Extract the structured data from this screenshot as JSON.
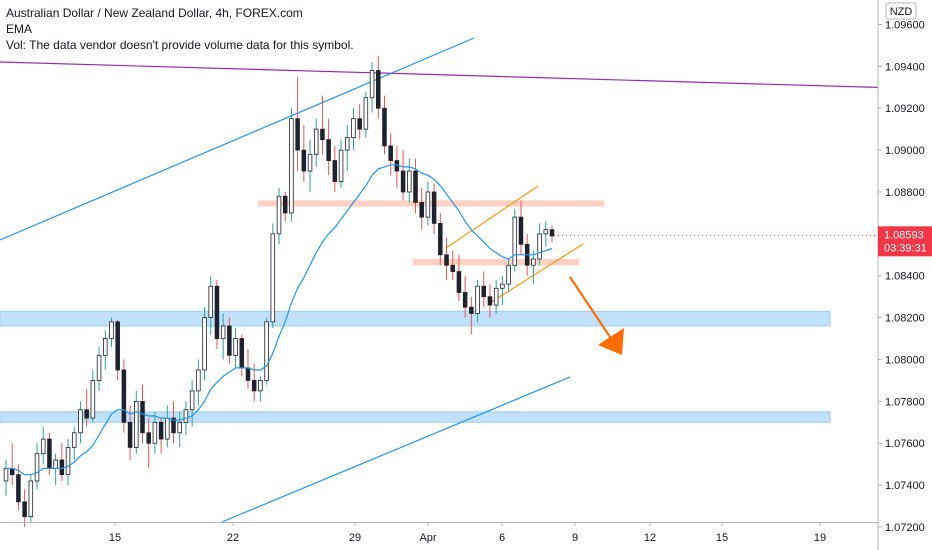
{
  "legend": {
    "title": "Australian Dollar / New Zealand Dollar, 4h, FOREX.com",
    "ema_label": "EMA",
    "vol_label": "Vol: The data vendor doesn't provide volume data for this symbol."
  },
  "price_axis": {
    "currency": "NZD",
    "last_price": "1.08593",
    "countdown": "03:39:31"
  },
  "colors": {
    "up": "#26a69a",
    "down": "#ef5350",
    "candle_body": "#1e222d",
    "candle_up_fill": "#ffffff",
    "ema": "#2196f3",
    "trend_blue": "#2196f3",
    "resistance_purple": "#9c27b0",
    "support_zone": "#bbdefb",
    "resistance_zone": "#ffccbc",
    "channel": "#ff9800",
    "arrow": "#ff6d00",
    "price_tag": "#f23645"
  },
  "chart_data": {
    "type": "candlestick",
    "symbol": "AUDNZD",
    "timeframe": "4h",
    "x_ticks": [
      "15",
      "22",
      "29",
      "Apr",
      "6",
      "9",
      "12",
      "15",
      "19"
    ],
    "y_ticks": [
      "1.09600",
      "1.09400",
      "1.09200",
      "1.09000",
      "1.08800",
      "1.08600",
      "1.08400",
      "1.08200",
      "1.08000",
      "1.07800",
      "1.07600",
      "1.07400",
      "1.07200"
    ],
    "ylim": [
      1.072,
      1.0965
    ],
    "last_price": 1.08593,
    "zones": [
      {
        "name": "support",
        "y_from": 1.0816,
        "y_to": 1.0823
      },
      {
        "name": "support",
        "y_from": 1.077,
        "y_to": 1.0775
      },
      {
        "name": "resistance",
        "y_from": 1.0873,
        "y_to": 1.0876
      },
      {
        "name": "resistance",
        "y_from": 1.0845,
        "y_to": 1.0848
      }
    ],
    "candles": [
      [
        1.0742,
        1.0752,
        1.0735,
        1.0748
      ],
      [
        1.0748,
        1.076,
        1.074,
        1.0745
      ],
      [
        1.0745,
        1.075,
        1.0728,
        1.0732
      ],
      [
        1.0732,
        1.0738,
        1.072,
        1.0725
      ],
      [
        1.0725,
        1.0745,
        1.0722,
        1.0742
      ],
      [
        1.0742,
        1.076,
        1.0738,
        1.0755
      ],
      [
        1.0755,
        1.0768,
        1.075,
        1.0762
      ],
      [
        1.0762,
        1.0765,
        1.0745,
        1.0748
      ],
      [
        1.0748,
        1.0755,
        1.074,
        1.0752
      ],
      [
        1.0752,
        1.076,
        1.0742,
        1.0745
      ],
      [
        1.0745,
        1.0762,
        1.074,
        1.0758
      ],
      [
        1.0758,
        1.0768,
        1.0752,
        1.0765
      ],
      [
        1.0765,
        1.078,
        1.076,
        1.0776
      ],
      [
        1.0776,
        1.0786,
        1.0768,
        1.0772
      ],
      [
        1.0772,
        1.0795,
        1.077,
        1.079
      ],
      [
        1.079,
        1.0806,
        1.0785,
        1.0802
      ],
      [
        1.0802,
        1.0814,
        1.0795,
        1.081
      ],
      [
        1.081,
        1.082,
        1.0806,
        1.0818
      ],
      [
        1.0818,
        1.0819,
        1.079,
        1.0795
      ],
      [
        1.0795,
        1.08,
        1.0765,
        1.077
      ],
      [
        1.077,
        1.0778,
        1.0752,
        1.0758
      ],
      [
        1.0758,
        1.0785,
        1.0755,
        1.078
      ],
      [
        1.078,
        1.0788,
        1.076,
        1.0765
      ],
      [
        1.0765,
        1.0772,
        1.0748,
        1.076
      ],
      [
        1.076,
        1.0775,
        1.0755,
        1.077
      ],
      [
        1.077,
        1.0772,
        1.0755,
        1.0762
      ],
      [
        1.0762,
        1.0778,
        1.0758,
        1.0772
      ],
      [
        1.0772,
        1.078,
        1.076,
        1.0765
      ],
      [
        1.0765,
        1.0775,
        1.0758,
        1.077
      ],
      [
        1.077,
        1.078,
        1.0764,
        1.0776
      ],
      [
        1.0776,
        1.079,
        1.0768,
        1.0785
      ],
      [
        1.0785,
        1.08,
        1.0778,
        1.0795
      ],
      [
        1.0795,
        1.0825,
        1.079,
        1.082
      ],
      [
        1.082,
        1.084,
        1.0812,
        1.0835
      ],
      [
        1.0835,
        1.0838,
        1.0805,
        1.081
      ],
      [
        1.081,
        1.0822,
        1.08,
        1.0816
      ],
      [
        1.0816,
        1.082,
        1.0798,
        1.0802
      ],
      [
        1.0802,
        1.0815,
        1.0796,
        1.081
      ],
      [
        1.081,
        1.0812,
        1.0792,
        1.0796
      ],
      [
        1.0796,
        1.0805,
        1.0786,
        1.079
      ],
      [
        1.079,
        1.0798,
        1.078,
        1.0785
      ],
      [
        1.0785,
        1.0792,
        1.078,
        1.079
      ],
      [
        1.079,
        1.082,
        1.0788,
        1.0818
      ],
      [
        1.0818,
        1.0865,
        1.0815,
        1.086
      ],
      [
        1.086,
        1.0882,
        1.0855,
        1.0878
      ],
      [
        1.0878,
        1.088,
        1.0866,
        1.087
      ],
      [
        1.087,
        1.092,
        1.0866,
        1.0915
      ],
      [
        1.0915,
        1.0935,
        1.089,
        1.09
      ],
      [
        1.09,
        1.0912,
        1.0885,
        1.089
      ],
      [
        1.089,
        1.0905,
        1.088,
        1.0898
      ],
      [
        1.0898,
        1.0915,
        1.0892,
        1.091
      ],
      [
        1.091,
        1.0926,
        1.0898,
        1.0905
      ],
      [
        1.0905,
        1.0915,
        1.0888,
        1.0895
      ],
      [
        1.0895,
        1.0902,
        1.088,
        1.0885
      ],
      [
        1.0885,
        1.0905,
        1.0882,
        1.09
      ],
      [
        1.09,
        1.0912,
        1.089,
        1.0906
      ],
      [
        1.0906,
        1.092,
        1.09,
        1.0915
      ],
      [
        1.0915,
        1.0922,
        1.0905,
        1.091
      ],
      [
        1.091,
        1.0928,
        1.0906,
        1.0925
      ],
      [
        1.0925,
        1.0942,
        1.0918,
        1.0938
      ],
      [
        1.0938,
        1.0945,
        1.0915,
        1.092
      ],
      [
        1.092,
        1.0926,
        1.0898,
        1.0902
      ],
      [
        1.0902,
        1.0908,
        1.0888,
        1.0895
      ],
      [
        1.0895,
        1.0902,
        1.0882,
        1.089
      ],
      [
        1.089,
        1.09,
        1.0876,
        1.088
      ],
      [
        1.088,
        1.0896,
        1.0875,
        1.089
      ],
      [
        1.089,
        1.0896,
        1.087,
        1.0875
      ],
      [
        1.0875,
        1.0882,
        1.0862,
        1.0868
      ],
      [
        1.0868,
        1.0885,
        1.0864,
        1.088
      ],
      [
        1.088,
        1.0884,
        1.086,
        1.0865
      ],
      [
        1.0865,
        1.087,
        1.0845,
        1.085
      ],
      [
        1.085,
        1.0858,
        1.0838,
        1.0845
      ],
      [
        1.0845,
        1.0852,
        1.0838,
        1.0842
      ],
      [
        1.0842,
        1.085,
        1.0828,
        1.0832
      ],
      [
        1.0832,
        1.084,
        1.082,
        1.0825
      ],
      [
        1.0825,
        1.083,
        1.0812,
        1.0822
      ],
      [
        1.0822,
        1.0838,
        1.0818,
        1.0835
      ],
      [
        1.0835,
        1.0842,
        1.0825,
        1.083
      ],
      [
        1.083,
        1.0836,
        1.082,
        1.0826
      ],
      [
        1.0826,
        1.0838,
        1.0822,
        1.0834
      ],
      [
        1.0834,
        1.084,
        1.0826,
        1.0836
      ],
      [
        1.0836,
        1.0848,
        1.0832,
        1.0845
      ],
      [
        1.0845,
        1.0872,
        1.0842,
        1.0868
      ],
      [
        1.0868,
        1.0876,
        1.085,
        1.0855
      ],
      [
        1.0855,
        1.086,
        1.084,
        1.0845
      ],
      [
        1.0845,
        1.0852,
        1.0836,
        1.0848
      ],
      [
        1.0848,
        1.0865,
        1.0845,
        1.086
      ],
      [
        1.086,
        1.0866,
        1.0854,
        1.0862
      ],
      [
        1.0862,
        1.0864,
        1.0856,
        1.0859
      ]
    ],
    "ema": [
      1.0748,
      1.0748,
      1.0747,
      1.0745,
      1.0745,
      1.0746,
      1.0748,
      1.0748,
      1.0748,
      1.0748,
      1.0749,
      1.0751,
      1.0754,
      1.0756,
      1.0759,
      1.0764,
      1.0769,
      1.0774,
      1.0776,
      1.0776,
      1.0774,
      1.0775,
      1.0774,
      1.0773,
      1.0773,
      1.0772,
      1.0772,
      1.0771,
      1.0771,
      1.0772,
      1.0773,
      1.0776,
      1.078,
      1.0786,
      1.0789,
      1.0792,
      1.0794,
      1.0796,
      1.0796,
      1.0796,
      1.0795,
      1.0795,
      1.0797,
      1.0803,
      1.0811,
      1.0818,
      1.0827,
      1.0834,
      1.0839,
      1.0845,
      1.0851,
      1.0856,
      1.086,
      1.0863,
      1.0867,
      1.0871,
      1.0875,
      1.0879,
      1.0883,
      1.0888,
      1.0891,
      1.0892,
      1.0893,
      1.0893,
      1.0892,
      1.0892,
      1.0891,
      1.0889,
      1.0888,
      1.0886,
      1.0883,
      1.0879,
      1.0875,
      1.0871,
      1.0866,
      1.0862,
      1.0859,
      1.0856,
      1.0853,
      1.0851,
      1.0849,
      1.0848,
      1.085,
      1.085,
      1.085,
      1.085,
      1.0851,
      1.0852,
      1.0853
    ]
  }
}
